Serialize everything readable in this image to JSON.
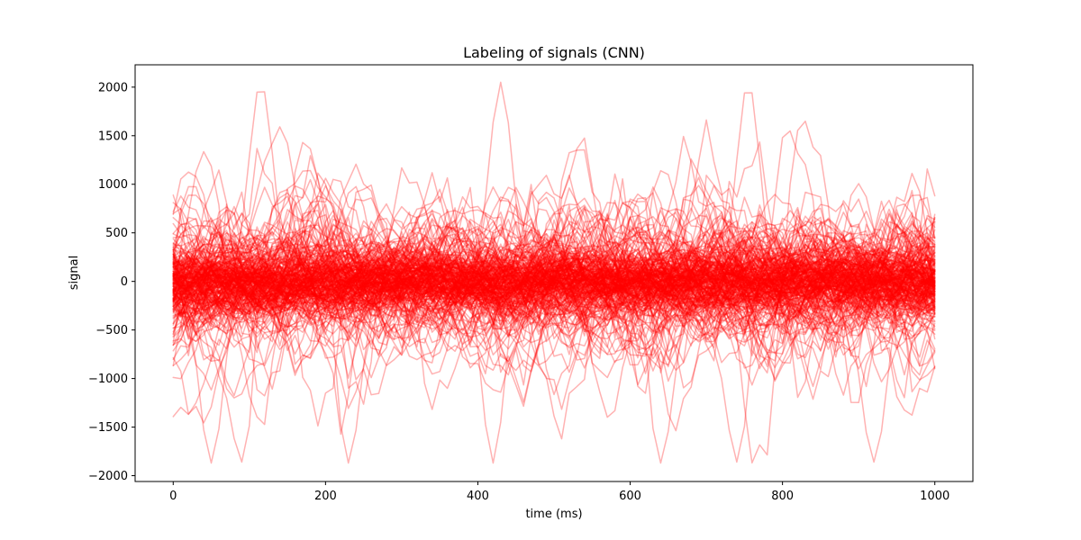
{
  "chart_data": {
    "type": "line",
    "title": "Labeling of signals (CNN)",
    "xlabel": "time (ms)",
    "ylabel": "signal",
    "xlim": [
      -50,
      1050
    ],
    "ylim": [
      -2060,
      2230
    ],
    "xticks": [
      0,
      200,
      400,
      600,
      800,
      1000
    ],
    "xtick_labels": [
      "0",
      "200",
      "400",
      "600",
      "800",
      "1000"
    ],
    "yticks": [
      2000,
      1500,
      1000,
      500,
      0,
      -500,
      -1000,
      -1500,
      -2000
    ],
    "ytick_labels": [
      "2000",
      "1500",
      "1000",
      "500",
      "0",
      "−500",
      "−1000",
      "−1500",
      "−2000"
    ],
    "grid": false,
    "series_color": "#ff0000",
    "series_alpha": 0.3,
    "series_count": 250,
    "sample_step_ms": 10,
    "series_description": "Many overlaid noisy oscillating traces spanning t = 0 to 1000 ms, mostly within ±700 with excursions up to about ±2000",
    "peaks": [
      {
        "x": 115,
        "y": 2050
      },
      {
        "x": 430,
        "y": 2050
      },
      {
        "x": 755,
        "y": 2050
      }
    ],
    "troughs": [
      {
        "x": 50,
        "y": -1870
      },
      {
        "x": 90,
        "y": -1860
      },
      {
        "x": 230,
        "y": -1870
      },
      {
        "x": 420,
        "y": -1870
      },
      {
        "x": 640,
        "y": -1870
      },
      {
        "x": 740,
        "y": -1860
      },
      {
        "x": 920,
        "y": -1860
      }
    ]
  }
}
